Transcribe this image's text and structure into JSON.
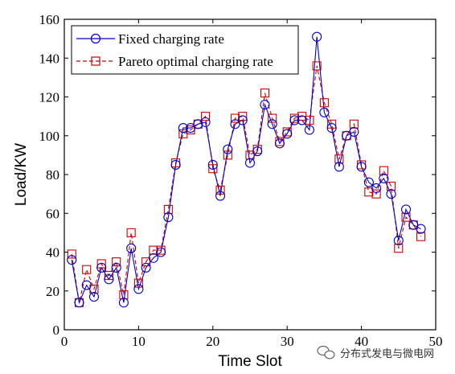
{
  "chart_data": {
    "type": "line",
    "xlabel": "Time Slot",
    "ylabel": "Load/KW",
    "xlim": [
      0,
      50
    ],
    "ylim": [
      0,
      160
    ],
    "xticks": [
      0,
      10,
      20,
      30,
      40,
      50
    ],
    "yticks": [
      0,
      20,
      40,
      60,
      80,
      100,
      120,
      140,
      160
    ],
    "grid": false,
    "legend_position": "top-left",
    "x": [
      1,
      2,
      3,
      4,
      5,
      6,
      7,
      8,
      9,
      10,
      11,
      12,
      13,
      14,
      15,
      16,
      17,
      18,
      19,
      20,
      21,
      22,
      23,
      24,
      25,
      26,
      27,
      28,
      29,
      30,
      31,
      32,
      33,
      34,
      35,
      36,
      37,
      38,
      39,
      40,
      41,
      42,
      43,
      44,
      45,
      46,
      47,
      48
    ],
    "series": [
      {
        "name": "Fixed charging rate",
        "color": "#0000cc",
        "marker": "circle",
        "line_style": "solid",
        "values": [
          36,
          14,
          23,
          17,
          32,
          26,
          32,
          14,
          42,
          21,
          32,
          37,
          40,
          58,
          85,
          104,
          104,
          106,
          107,
          85,
          69,
          93,
          106,
          108,
          86,
          92,
          116,
          106,
          96,
          101,
          108,
          108,
          103,
          151,
          112,
          104,
          84,
          100,
          102,
          84,
          76,
          73,
          78,
          70,
          46,
          62,
          54,
          52
        ]
      },
      {
        "name": "Pareto optimal charging rate",
        "color": "#cc0000",
        "marker": "square",
        "line_style": "dashed",
        "values": [
          39,
          14,
          31,
          21,
          34,
          28,
          35,
          18,
          50,
          24,
          35,
          41,
          41,
          62,
          86,
          101,
          103,
          106,
          110,
          83,
          72,
          90,
          109,
          110,
          90,
          93,
          122,
          109,
          97,
          102,
          109,
          110,
          108,
          136,
          117,
          106,
          88,
          100,
          106,
          85,
          71,
          70,
          82,
          74,
          42,
          58,
          54,
          48
        ]
      }
    ]
  },
  "watermark": {
    "icon": "wechat-icon",
    "text": "分布式发电与微电网"
  }
}
